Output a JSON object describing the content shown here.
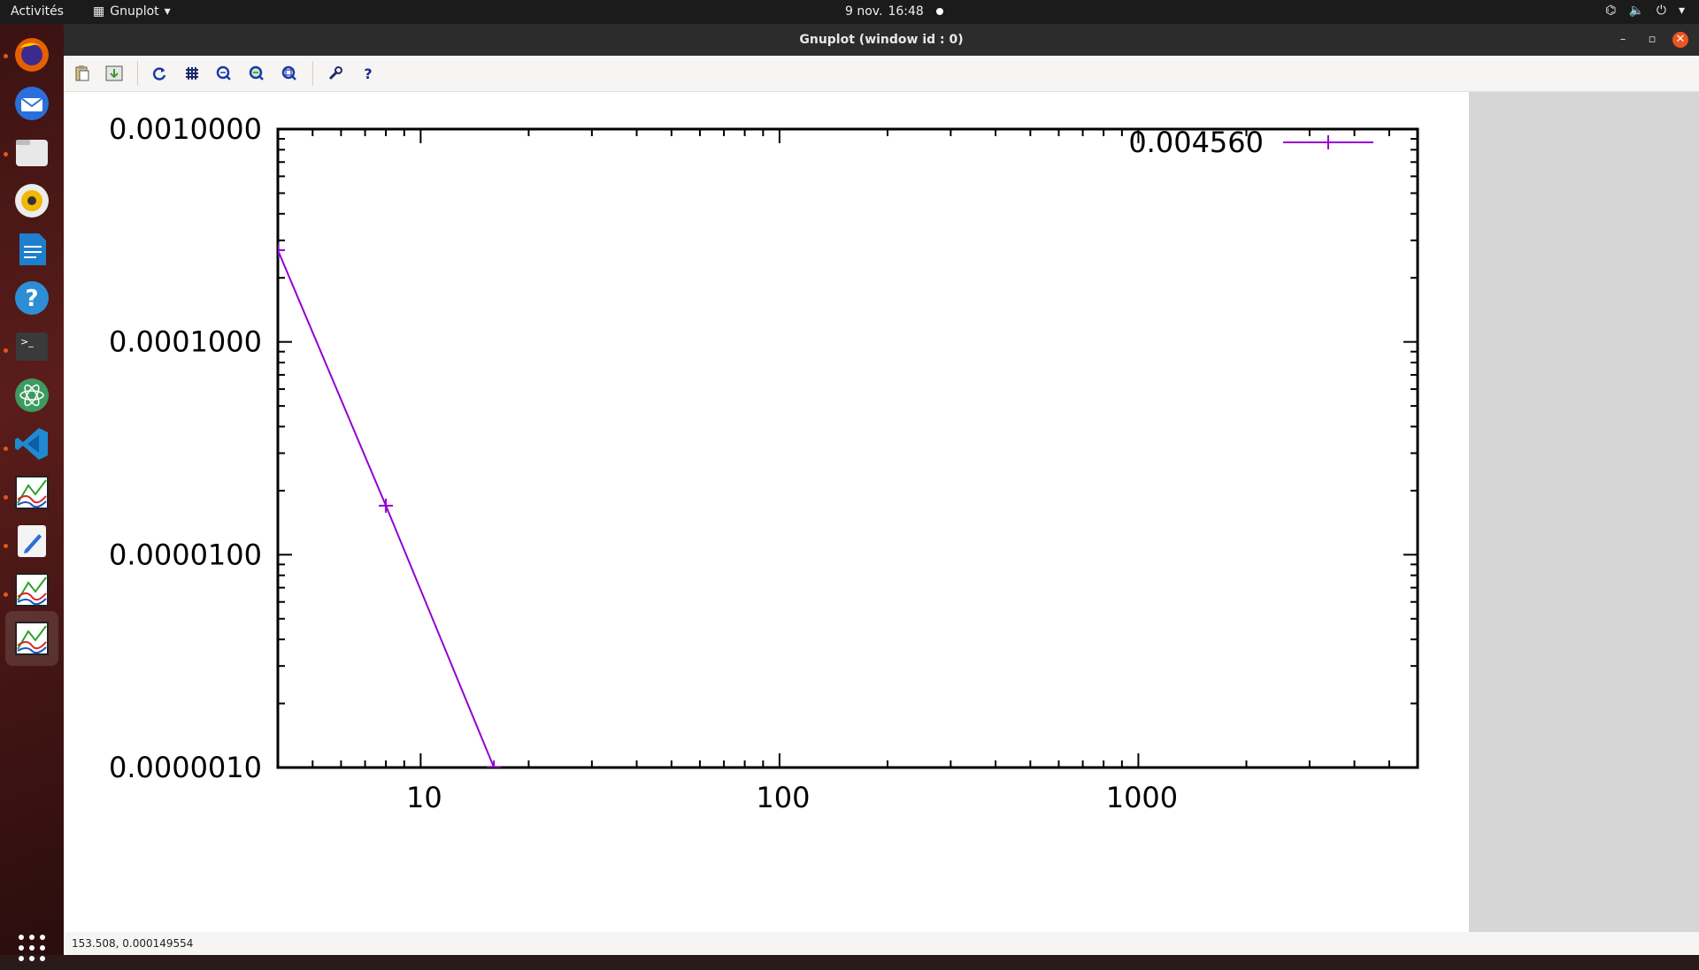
{
  "topbar": {
    "activities": "Activités",
    "app_name": "Gnuplot",
    "date": "9 nov.",
    "time": "16:48"
  },
  "dock": {
    "items": [
      "firefox-icon",
      "thunderbird-icon",
      "files-icon",
      "rhythmbox-icon",
      "writer-icon",
      "help-icon",
      "terminal-icon",
      "atom-icon",
      "vscode-icon",
      "gnuplot-icon",
      "text-editor-icon",
      "gnuplot-icon",
      "gnuplot-icon",
      "show-apps-icon"
    ]
  },
  "window": {
    "title": "Gnuplot (window id : 0)",
    "toolbar": [
      "copy-icon",
      "print-icon",
      "replot-icon",
      "grid-icon",
      "zoom-previous-icon",
      "zoom-next-icon",
      "zoom-autoscale-icon",
      "settings-icon",
      "help-icon"
    ]
  },
  "status": {
    "coords": "153.508,  0.000149554"
  },
  "colors": {
    "series": "#9400d3",
    "accent": "#e95420"
  },
  "chart_data": {
    "type": "line",
    "title": "",
    "xlabel": "",
    "ylabel": "",
    "x_scale": "log",
    "y_scale": "log",
    "xlim": [
      4,
      6000
    ],
    "ylim": [
      1e-06,
      0.001
    ],
    "x_ticks": [
      10,
      100,
      1000
    ],
    "x_tick_labels": [
      "10",
      "100",
      "1000"
    ],
    "y_ticks": [
      1e-06,
      1e-05,
      0.0001,
      0.001
    ],
    "y_tick_labels": [
      "0.0000010",
      "0.0000100",
      "0.0001000",
      "0.0010000"
    ],
    "grid": false,
    "legend_position": "top-right",
    "series": [
      {
        "name": "0.004560",
        "x": [
          4,
          8,
          16
        ],
        "y": [
          0.00027,
          1.7e-05,
          1e-06
        ]
      }
    ]
  }
}
